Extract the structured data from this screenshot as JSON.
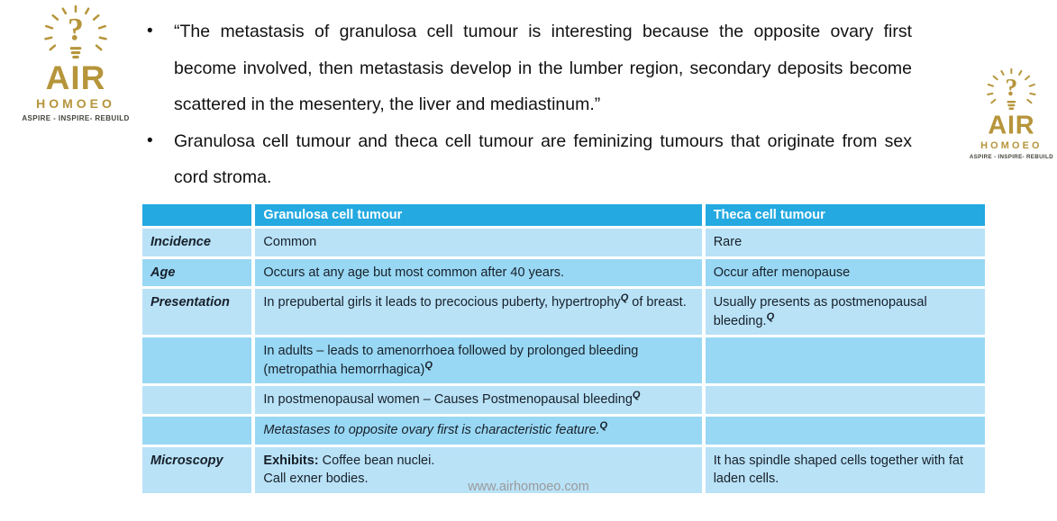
{
  "logo": {
    "brand": "AIR",
    "sub": "HOMOEO",
    "tagline": "ASPIRE - INSPIRE- REBUILD",
    "bulb_glyph": "?",
    "color_gold": "#B6953B"
  },
  "bullets": [
    "“The metastasis of granulosa cell tumour is interesting because the opposite ovary first become involved, then metastasis develop in the lumber region, secondary deposits become scattered in the mesentery, the liver and mediastinum.”",
    "Granulosa cell tumour and theca cell tumour are feminizing tumours that originate from sex cord stroma."
  ],
  "table": {
    "colors": {
      "header_bg": "#24A9E1",
      "header_text": "#FFFFFF",
      "row_light": "#B9E2F7",
      "row_dark": "#99D8F4",
      "text": "#17202A"
    },
    "headers": [
      "",
      "Granulosa cell tumour",
      "Theca cell tumour"
    ],
    "rows": [
      {
        "label": "Incidence",
        "shade": "light",
        "col2": [
          {
            "t": "Common"
          }
        ],
        "col3": [
          {
            "t": "Rare"
          }
        ]
      },
      {
        "label": "Age",
        "shade": "dark",
        "col2": [
          {
            "t": "Occurs at any age but most common after 40 years."
          }
        ],
        "col3": [
          {
            "t": "Occur after menopause"
          }
        ]
      },
      {
        "label": "Presentation",
        "shade": "light",
        "col2": [
          {
            "t": "In prepubertal girls it leads to precocious puberty, hypertrophy"
          },
          {
            "t": "Q",
            "s": "sup"
          },
          {
            "t": " of breast."
          }
        ],
        "col3": [
          {
            "t": "Usually presents as postmenopausal bleeding."
          },
          {
            "t": "Q",
            "s": "sup"
          }
        ]
      },
      {
        "label": "",
        "shade": "dark",
        "col2": [
          {
            "t": "In adults – leads to amenorrhoea followed by prolonged bleeding (metropathia hemorrhagica)"
          },
          {
            "t": "Q",
            "s": "sup"
          }
        ],
        "col3": []
      },
      {
        "label": "",
        "shade": "light",
        "col2": [
          {
            "t": "In postmenopausal women – Causes Postmenopausal bleeding"
          },
          {
            "t": "Q",
            "s": "sup"
          }
        ],
        "col3": []
      },
      {
        "label": "",
        "shade": "dark",
        "col2": [
          {
            "t": "Metastases to opposite ovary first is characteristic feature.",
            "s": "i"
          },
          {
            "t": "Q",
            "s": "sup"
          }
        ],
        "col3": []
      },
      {
        "label": "Microscopy",
        "shade": "light",
        "col2": [
          {
            "t": "Exhibits:",
            "s": "b"
          },
          {
            "t": " Coffee bean nuclei."
          },
          {
            "br": true
          },
          {
            "t": "Call exner bodies."
          }
        ],
        "col3": [
          {
            "t": "It has spindle shaped cells together with fat laden cells."
          }
        ]
      }
    ]
  },
  "footer": {
    "url": "www.airhomoeo.com"
  }
}
